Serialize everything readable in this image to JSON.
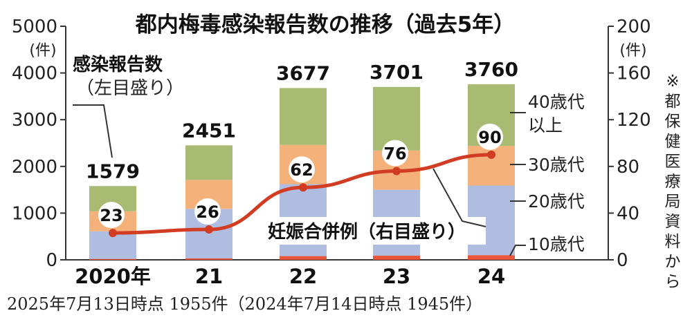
{
  "chart_data": {
    "type": "bar",
    "title": "都内梅毒感染報告数の推移（過去5年）",
    "categories": [
      "2020年",
      "21",
      "22",
      "23",
      "24"
    ],
    "totals": [
      1579,
      2451,
      3677,
      3701,
      3760
    ],
    "series": [
      {
        "name": "10歳代",
        "color": "#e8553a",
        "values": [
          20,
          30,
          80,
          90,
          100
        ]
      },
      {
        "name": "20歳代",
        "color": "#aebde0",
        "values": [
          590,
          1060,
          1540,
          1410,
          1490
        ]
      },
      {
        "name": "30歳代",
        "color": "#f4b27a",
        "values": [
          430,
          620,
          840,
          840,
          850
        ]
      },
      {
        "name": "40歳代以上",
        "color": "#a9bb73",
        "values": [
          539,
          741,
          1217,
          1361,
          1320
        ]
      }
    ],
    "line": {
      "name": "妊娠合併例（右目盛り）",
      "color": "#d23c22",
      "values": [
        23,
        26,
        62,
        76,
        90
      ]
    },
    "left_axis": {
      "ticks": [
        "0",
        "1000",
        "2000",
        "3000",
        "4000",
        "5000"
      ],
      "unit": "(件)",
      "ylim": [
        0,
        5000
      ]
    },
    "right_axis": {
      "ticks": [
        "0",
        "40",
        "80",
        "120",
        "160",
        "200"
      ],
      "unit": "(件)",
      "ylim": [
        0,
        200
      ]
    },
    "callouts": {
      "left_title": "感染報告数",
      "left_sub": "（左目盛り）",
      "line_label": "妊娠合併例（右目盛り）"
    },
    "legend_lines": {
      "l40_1": "40歳代",
      "l40_2": "以上",
      "l30": "30歳代",
      "l20": "20歳代",
      "l10": "10歳代"
    },
    "footnote": "2025年7月13日時点 1955件（2024年7月14日時点 1945件）",
    "source": "※都保健医療局資料から"
  }
}
